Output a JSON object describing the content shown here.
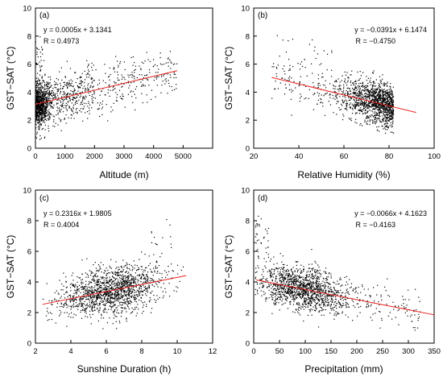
{
  "figure": {
    "background": "#ffffff",
    "point_color": "#000000",
    "fit_color": "#e8201c"
  },
  "chart_data": [
    {
      "type": "scatter",
      "panel_label": "(a)",
      "xlabel": "Altitude (m)",
      "ylabel": "GST−SAT (°C)",
      "xlim": [
        0,
        6000
      ],
      "ylim": [
        0,
        10
      ],
      "xticks": [
        0,
        1000,
        2000,
        3000,
        4000,
        5000
      ],
      "yticks": [
        0,
        2,
        4,
        6,
        8,
        10
      ],
      "equation": "y = 0.0005x + 3.1341",
      "r_text": "R = 0.4973",
      "annotation_position": "top-left",
      "fit": {
        "slope": 0.0005,
        "intercept": 3.1341,
        "x_range": [
          0,
          4800
        ]
      },
      "cloud": {
        "n": 1500,
        "seed": 11,
        "model": "altitude"
      }
    },
    {
      "type": "scatter",
      "panel_label": "(b)",
      "xlabel": "Relative Humidity (%)",
      "ylabel": "GST−SAT (°C)",
      "xlim": [
        20,
        100
      ],
      "ylim": [
        0,
        10
      ],
      "xticks": [
        20,
        40,
        60,
        80,
        100
      ],
      "yticks": [
        0,
        2,
        4,
        6,
        8,
        10
      ],
      "equation": "y = −0.0391x + 6.1474",
      "r_text": "R = −0.4750",
      "annotation_position": "top-right",
      "fit": {
        "slope": -0.0391,
        "intercept": 6.1474,
        "x_range": [
          28,
          92
        ]
      },
      "cloud": {
        "n": 1500,
        "seed": 22,
        "model": "humidity"
      }
    },
    {
      "type": "scatter",
      "panel_label": "(c)",
      "xlabel": "Sunshine Duration (h)",
      "ylabel": "GST−SAT (°C)",
      "xlim": [
        2,
        12
      ],
      "ylim": [
        0,
        10
      ],
      "xticks": [
        2,
        4,
        6,
        8,
        10,
        12
      ],
      "yticks": [
        0,
        2,
        4,
        6,
        8,
        10
      ],
      "equation": "y = 0.2316x + 1.9805",
      "r_text": "R = 0.4004",
      "annotation_position": "top-left",
      "fit": {
        "slope": 0.2316,
        "intercept": 1.9805,
        "x_range": [
          2.4,
          10.5
        ]
      },
      "cloud": {
        "n": 1500,
        "seed": 33,
        "model": "sunshine"
      }
    },
    {
      "type": "scatter",
      "panel_label": "(d)",
      "xlabel": "Precipitation (mm)",
      "ylabel": "GST−SAT (°C)",
      "xlim": [
        0,
        350
      ],
      "ylim": [
        0,
        10
      ],
      "xticks": [
        0,
        50,
        100,
        150,
        200,
        250,
        300,
        350
      ],
      "yticks": [
        0,
        2,
        4,
        6,
        8,
        10
      ],
      "equation": "y = −0.0066x + 4.1623",
      "r_text": "R = −0.4163",
      "annotation_position": "top-right",
      "fit": {
        "slope": -0.0066,
        "intercept": 4.1623,
        "x_range": [
          5,
          350
        ]
      },
      "cloud": {
        "n": 1500,
        "seed": 44,
        "model": "precip"
      }
    }
  ]
}
